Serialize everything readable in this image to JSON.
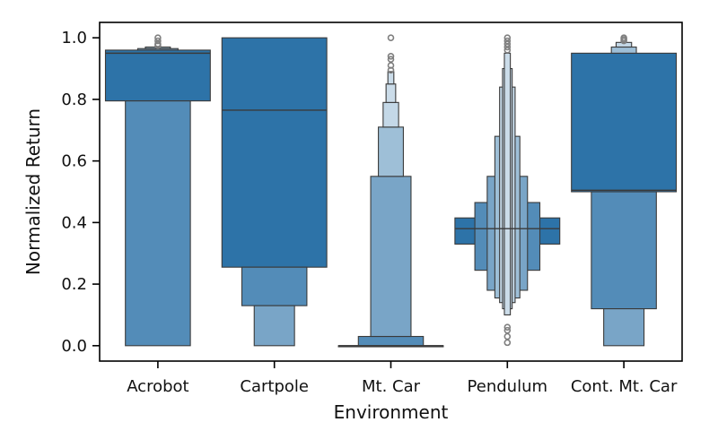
{
  "chart_data": {
    "type": "boxen",
    "title": "",
    "xlabel": "Environment",
    "ylabel": "Normalized Return",
    "ylim": [
      -0.05,
      1.05
    ],
    "yticks": [
      0.0,
      0.2,
      0.4,
      0.6,
      0.8,
      1.0
    ],
    "ytick_labels": [
      "0.0",
      "0.2",
      "0.4",
      "0.6",
      "0.8",
      "1.0"
    ],
    "grid": false,
    "colors": {
      "box": "#2d73a8",
      "edge": "#3a3a3a",
      "outlier": "#7f7f7f"
    },
    "categories": [
      "Acrobot",
      "Cartpole",
      "Mt. Car",
      "Pendulum",
      "Cont. Mt. Car"
    ],
    "series": [
      {
        "category": "Acrobot",
        "median": 0.95,
        "boxes": [
          {
            "low": 0.795,
            "high": 0.96
          },
          {
            "low": 0.0,
            "high": 0.795
          },
          {
            "low": 0.96,
            "high": 0.965
          },
          {
            "low": 0.965,
            "high": 0.97
          }
        ],
        "outliers": [
          0.975,
          0.98,
          0.99,
          1.0
        ]
      },
      {
        "category": "Cartpole",
        "median": 0.765,
        "boxes": [
          {
            "low": 0.255,
            "high": 1.0
          },
          {
            "low": 0.13,
            "high": 0.255
          },
          {
            "low": 0.0,
            "high": 0.13
          }
        ],
        "outliers": []
      },
      {
        "category": "Mt. Car",
        "median": 0.0,
        "boxes": [
          {
            "low": 0.0,
            "high": 0.0
          },
          {
            "low": 0.0,
            "high": 0.03
          },
          {
            "low": 0.03,
            "high": 0.55
          },
          {
            "low": 0.55,
            "high": 0.71
          },
          {
            "low": 0.71,
            "high": 0.79
          },
          {
            "low": 0.79,
            "high": 0.85
          },
          {
            "low": 0.85,
            "high": 0.89
          }
        ],
        "outliers": [
          0.895,
          0.91,
          0.93,
          0.94,
          1.0
        ]
      },
      {
        "category": "Pendulum",
        "median": 0.38,
        "boxes": [
          {
            "low": 0.33,
            "high": 0.415
          },
          {
            "low": 0.245,
            "high": 0.465
          },
          {
            "low": 0.18,
            "high": 0.55
          },
          {
            "low": 0.155,
            "high": 0.68
          },
          {
            "low": 0.14,
            "high": 0.84
          },
          {
            "low": 0.12,
            "high": 0.9
          },
          {
            "low": 0.1,
            "high": 0.95
          }
        ],
        "outliers": [
          0.01,
          0.03,
          0.05,
          0.06,
          0.96,
          0.97,
          0.98,
          0.99,
          1.0
        ]
      },
      {
        "category": "Cont. Mt. Car",
        "median": 0.505,
        "boxes": [
          {
            "low": 0.5,
            "high": 0.95
          },
          {
            "low": 0.12,
            "high": 0.5
          },
          {
            "low": 0.0,
            "high": 0.12
          },
          {
            "low": 0.95,
            "high": 0.97
          },
          {
            "low": 0.97,
            "high": 0.985
          }
        ],
        "outliers": [
          0.99,
          0.995,
          1.0
        ]
      }
    ]
  }
}
